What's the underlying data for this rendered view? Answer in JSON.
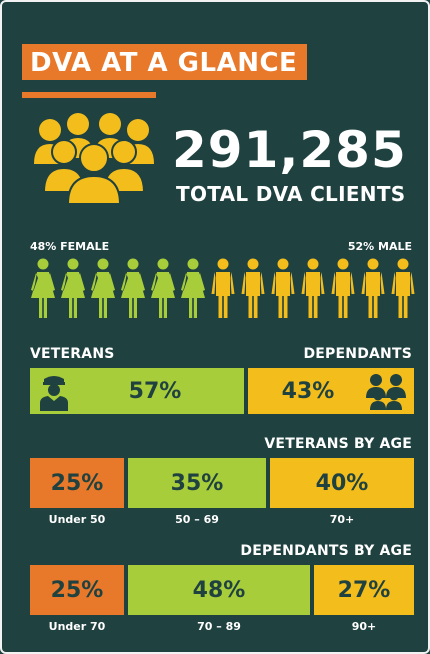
{
  "title": "DVA AT A GLANCE",
  "total_clients": {
    "number": "291,285",
    "label": "TOTAL DVA CLIENTS"
  },
  "gender": {
    "female_label": "48% FEMALE",
    "male_label": "52% MALE",
    "female_icons": 6,
    "male_icons": 7
  },
  "split": {
    "veterans_label": "VETERANS",
    "dependants_label": "DEPENDANTS",
    "veterans_pct": "57%",
    "dependants_pct": "43%"
  },
  "veterans_by_age": {
    "heading": "VETERANS BY AGE",
    "groups": [
      {
        "pct": "25%",
        "label": "Under 50"
      },
      {
        "pct": "35%",
        "label": "50 – 69"
      },
      {
        "pct": "40%",
        "label": "70+"
      }
    ]
  },
  "dependants_by_age": {
    "heading": "DEPENDANTS BY AGE",
    "groups": [
      {
        "pct": "25%",
        "label": "Under 70"
      },
      {
        "pct": "48%",
        "label": "70 – 89"
      },
      {
        "pct": "27%",
        "label": "90+"
      }
    ]
  },
  "colors": {
    "background": "#1f4140",
    "orange": "#e8792a",
    "green": "#a8cd3a",
    "yellow": "#f3bd1c"
  },
  "icons": [
    "crowd-icon",
    "female-person-icon",
    "male-person-icon",
    "soldier-icon",
    "family-icon"
  ]
}
